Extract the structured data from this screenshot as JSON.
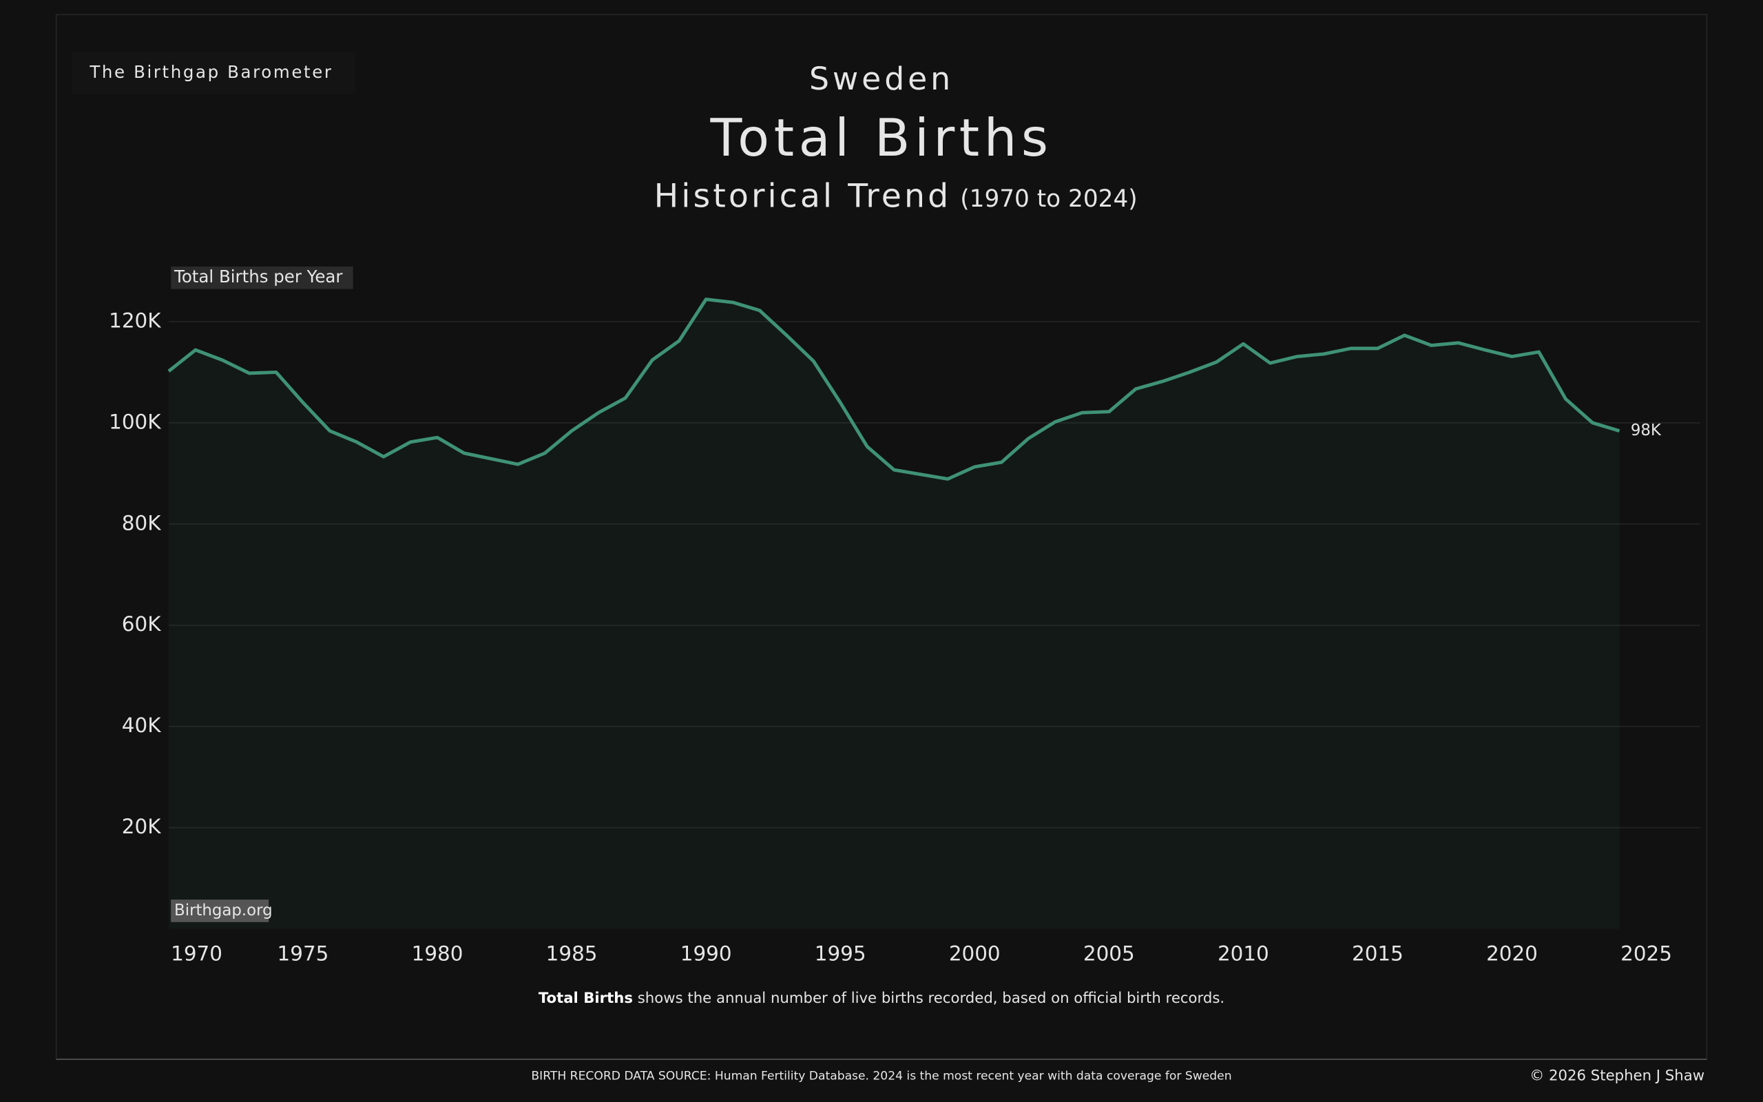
{
  "brand": "The Birthgap Barometer",
  "chart_data": {
    "type": "line",
    "country": "Sweden",
    "title": "Total Births",
    "subtitle": "Historical Trend",
    "period": "(1970 to 2024)",
    "y_label": "Total Births per Year",
    "watermark": "Birthgap.org",
    "x": [
      1970,
      1971,
      1972,
      1973,
      1974,
      1975,
      1976,
      1977,
      1978,
      1979,
      1980,
      1981,
      1982,
      1983,
      1984,
      1985,
      1986,
      1987,
      1988,
      1989,
      1990,
      1991,
      1992,
      1993,
      1994,
      1995,
      1996,
      1997,
      1998,
      1999,
      2000,
      2001,
      2002,
      2003,
      2004,
      2005,
      2006,
      2007,
      2008,
      2009,
      2010,
      2011,
      2012,
      2013,
      2014,
      2015,
      2016,
      2017,
      2018,
      2019,
      2020,
      2021,
      2022,
      2023,
      2024
    ],
    "values": [
      110200,
      114400,
      112400,
      109800,
      110000,
      104000,
      98400,
      96200,
      93300,
      96200,
      97100,
      94000,
      92900,
      91800,
      94000,
      98400,
      102000,
      104900,
      112400,
      116200,
      124400,
      123800,
      122200,
      117300,
      112200,
      104000,
      95300,
      90700,
      89800,
      88900,
      91300,
      92200,
      96900,
      100200,
      102000,
      102200,
      106700,
      108200,
      110000,
      112000,
      115600,
      111800,
      113100,
      113600,
      114700,
      114700,
      117300,
      115300,
      115800,
      114400,
      113100,
      114000,
      104700,
      100000,
      98400
    ],
    "value_labels": [
      null,
      null,
      null,
      null,
      null,
      null,
      null,
      null,
      null,
      null,
      null,
      null,
      null,
      null,
      null,
      null,
      null,
      null,
      null,
      null,
      null,
      null,
      null,
      null,
      null,
      null,
      null,
      null,
      null,
      null,
      null,
      null,
      null,
      null,
      null,
      null,
      null,
      null,
      null,
      null,
      null,
      null,
      null,
      null,
      null,
      null,
      null,
      null,
      null,
      null,
      null,
      null,
      null,
      null,
      "98K"
    ],
    "color": "#3f9276",
    "xlim": [
      1970,
      2027
    ],
    "xticks": [
      1970,
      1975,
      1980,
      1985,
      1990,
      1995,
      2000,
      2005,
      2010,
      2015,
      2020,
      2025
    ],
    "ylim": [
      0,
      130000
    ],
    "yticks": [
      {
        "value": 20000,
        "label": "20K"
      },
      {
        "value": 40000,
        "label": "40K"
      },
      {
        "value": 60000,
        "label": "60K"
      },
      {
        "value": 80000,
        "label": "80K"
      },
      {
        "value": 100000,
        "label": "100K"
      },
      {
        "value": 120000,
        "label": "120K"
      }
    ],
    "grid": true,
    "caption": {
      "bold": "Total Births",
      "text": " shows the annual number of live births recorded, based on official birth records."
    }
  },
  "footer": {
    "source": "BIRTH RECORD DATA SOURCE: Human Fertility Database. 2024 is the most recent year with data coverage for Sweden",
    "copyright": "© 2026 Stephen J Shaw"
  }
}
